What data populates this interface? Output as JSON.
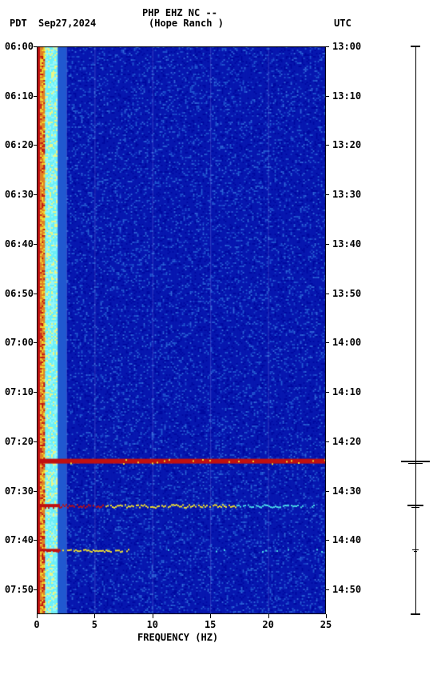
{
  "header": {
    "left_tz": "PDT",
    "date": "Sep27,2024",
    "title_top": "PHP EHZ NC --",
    "title_bottom": "(Hope Ranch )",
    "right_tz": "UTC"
  },
  "chart": {
    "type": "spectrogram",
    "x_axis": {
      "label": "FREQUENCY (HZ)",
      "min": 0,
      "max": 25,
      "ticks": [
        0,
        5,
        10,
        15,
        20,
        25
      ],
      "label_fontsize": 12,
      "grid_color": "rgba(200,200,255,0.25)"
    },
    "y_left": {
      "min": 360,
      "max": 475,
      "ticks": [
        "06:00",
        "06:10",
        "06:20",
        "06:30",
        "06:40",
        "06:50",
        "07:00",
        "07:10",
        "07:20",
        "07:30",
        "07:40",
        "07:50"
      ],
      "tick_minutes": [
        360,
        370,
        380,
        390,
        400,
        410,
        420,
        430,
        440,
        450,
        460,
        470
      ]
    },
    "y_right": {
      "ticks": [
        "13:00",
        "13:10",
        "13:20",
        "13:30",
        "13:40",
        "13:50",
        "14:00",
        "14:10",
        "14:20",
        "14:30",
        "14:40",
        "14:50"
      ],
      "tick_minutes": [
        780,
        790,
        800,
        810,
        820,
        830,
        840,
        850,
        860,
        870,
        880,
        890
      ]
    },
    "colors": {
      "background": "#0818b0",
      "low_band_primary": "#6cf0f8",
      "low_band_secondary": "#2058d0",
      "deep_blue": "#0008a0",
      "red": "#c01010",
      "yellow": "#f0e030",
      "orange": "#e08020",
      "cyan": "#48d8e8",
      "border": "#000000"
    },
    "vertical_bands": [
      {
        "freq_start": 0.0,
        "freq_end": 0.3,
        "color": "#c01010"
      },
      {
        "freq_start": 0.3,
        "freq_end": 0.7,
        "color": "#e08020"
      },
      {
        "freq_start": 0.7,
        "freq_end": 1.8,
        "color": "#6cf0f8"
      },
      {
        "freq_start": 1.8,
        "freq_end": 2.6,
        "color": "#2058d0"
      },
      {
        "freq_start": 2.6,
        "freq_end": 25,
        "color": "#0818b0"
      }
    ],
    "events": [
      {
        "minute": 444.0,
        "thickness": 6,
        "full_width": true,
        "color": "#c01010"
      },
      {
        "minute": 453.0,
        "thickness": 4,
        "full_width": false,
        "extent_hz": 23,
        "color_mix": [
          "#c01010",
          "#f0e030",
          "#48d8e8"
        ]
      },
      {
        "minute": 462.0,
        "thickness": 3,
        "full_width": false,
        "extent_hz": 8,
        "color_mix": [
          "#c01010",
          "#f0e030"
        ]
      }
    ],
    "waveform_events": [
      {
        "minute": 444.0,
        "amplitude": 18,
        "thickness": 2
      },
      {
        "minute": 453.0,
        "amplitude": 10,
        "thickness": 2
      },
      {
        "minute": 462.0,
        "amplitude": 4,
        "thickness": 1
      }
    ]
  }
}
